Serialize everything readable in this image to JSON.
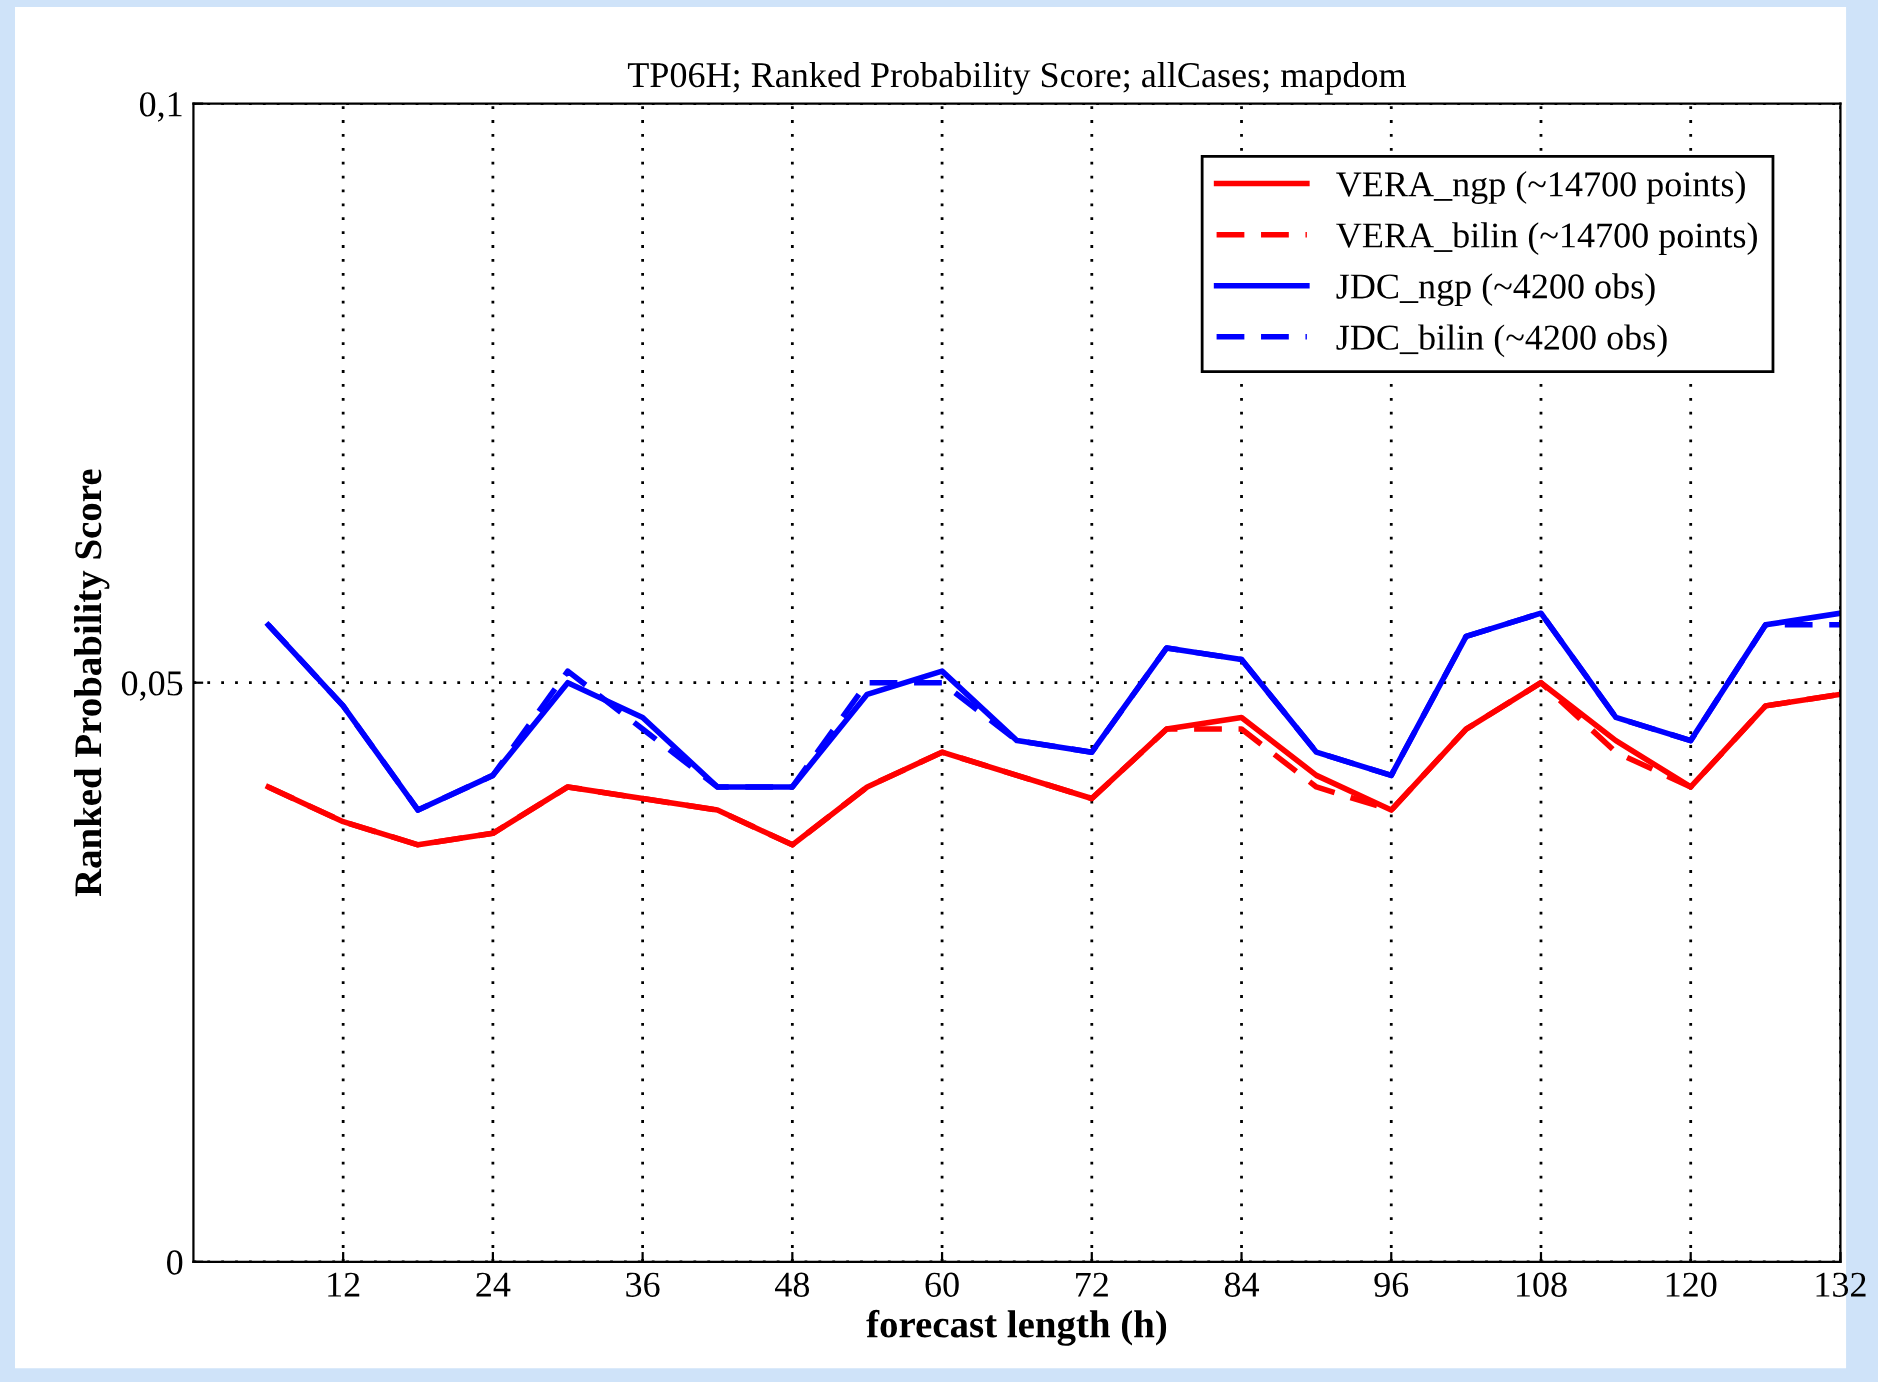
{
  "chart_data": {
    "type": "line",
    "title": "TP06H; Ranked Probability Score; allCases; mapdom",
    "xlabel": "forecast length (h)",
    "ylabel": "Ranked Probability Score",
    "x": [
      6,
      12,
      18,
      24,
      30,
      36,
      42,
      48,
      54,
      60,
      66,
      72,
      78,
      84,
      90,
      96,
      102,
      108,
      114,
      120,
      126,
      132
    ],
    "series": [
      {
        "name": "VERA_ngp (~14700 points)",
        "color": "#ff0000",
        "line_style": "solid",
        "values": [
          0.041,
          0.038,
          0.036,
          0.037,
          0.041,
          0.04,
          0.039,
          0.036,
          0.041,
          0.044,
          0.042,
          0.04,
          0.046,
          0.047,
          0.042,
          0.039,
          0.046,
          0.05,
          0.045,
          0.041,
          0.048,
          0.049
        ]
      },
      {
        "name": "VERA_bilin (~14700 points)",
        "color": "#ff0000",
        "line_style": "dashed",
        "values": [
          0.041,
          0.038,
          0.036,
          0.037,
          0.041,
          0.04,
          0.039,
          0.036,
          0.041,
          0.044,
          0.042,
          0.04,
          0.046,
          0.046,
          0.041,
          0.039,
          0.046,
          0.05,
          0.044,
          0.041,
          0.048,
          0.049
        ]
      },
      {
        "name": "JDC_ngp (~4200 obs)",
        "color": "#0000ff",
        "line_style": "solid",
        "values": [
          0.055,
          0.048,
          0.039,
          0.042,
          0.05,
          0.047,
          0.041,
          0.041,
          0.049,
          0.051,
          0.045,
          0.044,
          0.053,
          0.052,
          0.044,
          0.042,
          0.054,
          0.056,
          0.047,
          0.045,
          0.055,
          0.056
        ]
      },
      {
        "name": "JDC_bilin (~4200 obs)",
        "color": "#0000ff",
        "line_style": "dashed",
        "values": [
          0.055,
          0.048,
          0.039,
          0.042,
          0.051,
          0.046,
          0.041,
          0.041,
          0.05,
          0.05,
          0.045,
          0.044,
          0.053,
          0.052,
          0.044,
          0.042,
          0.054,
          0.056,
          0.047,
          0.045,
          0.055,
          0.055
        ]
      }
    ],
    "xlim": [
      0,
      132
    ],
    "ylim": [
      0,
      0.1
    ],
    "xticks": [
      12,
      24,
      36,
      48,
      60,
      72,
      84,
      96,
      108,
      120,
      132
    ],
    "yticks": [
      {
        "value": 0,
        "label": "0"
      },
      {
        "value": 0.05,
        "label": "0,05"
      },
      {
        "value": 0.1,
        "label": "0,1"
      }
    ],
    "grid": true,
    "legend": "top right"
  }
}
